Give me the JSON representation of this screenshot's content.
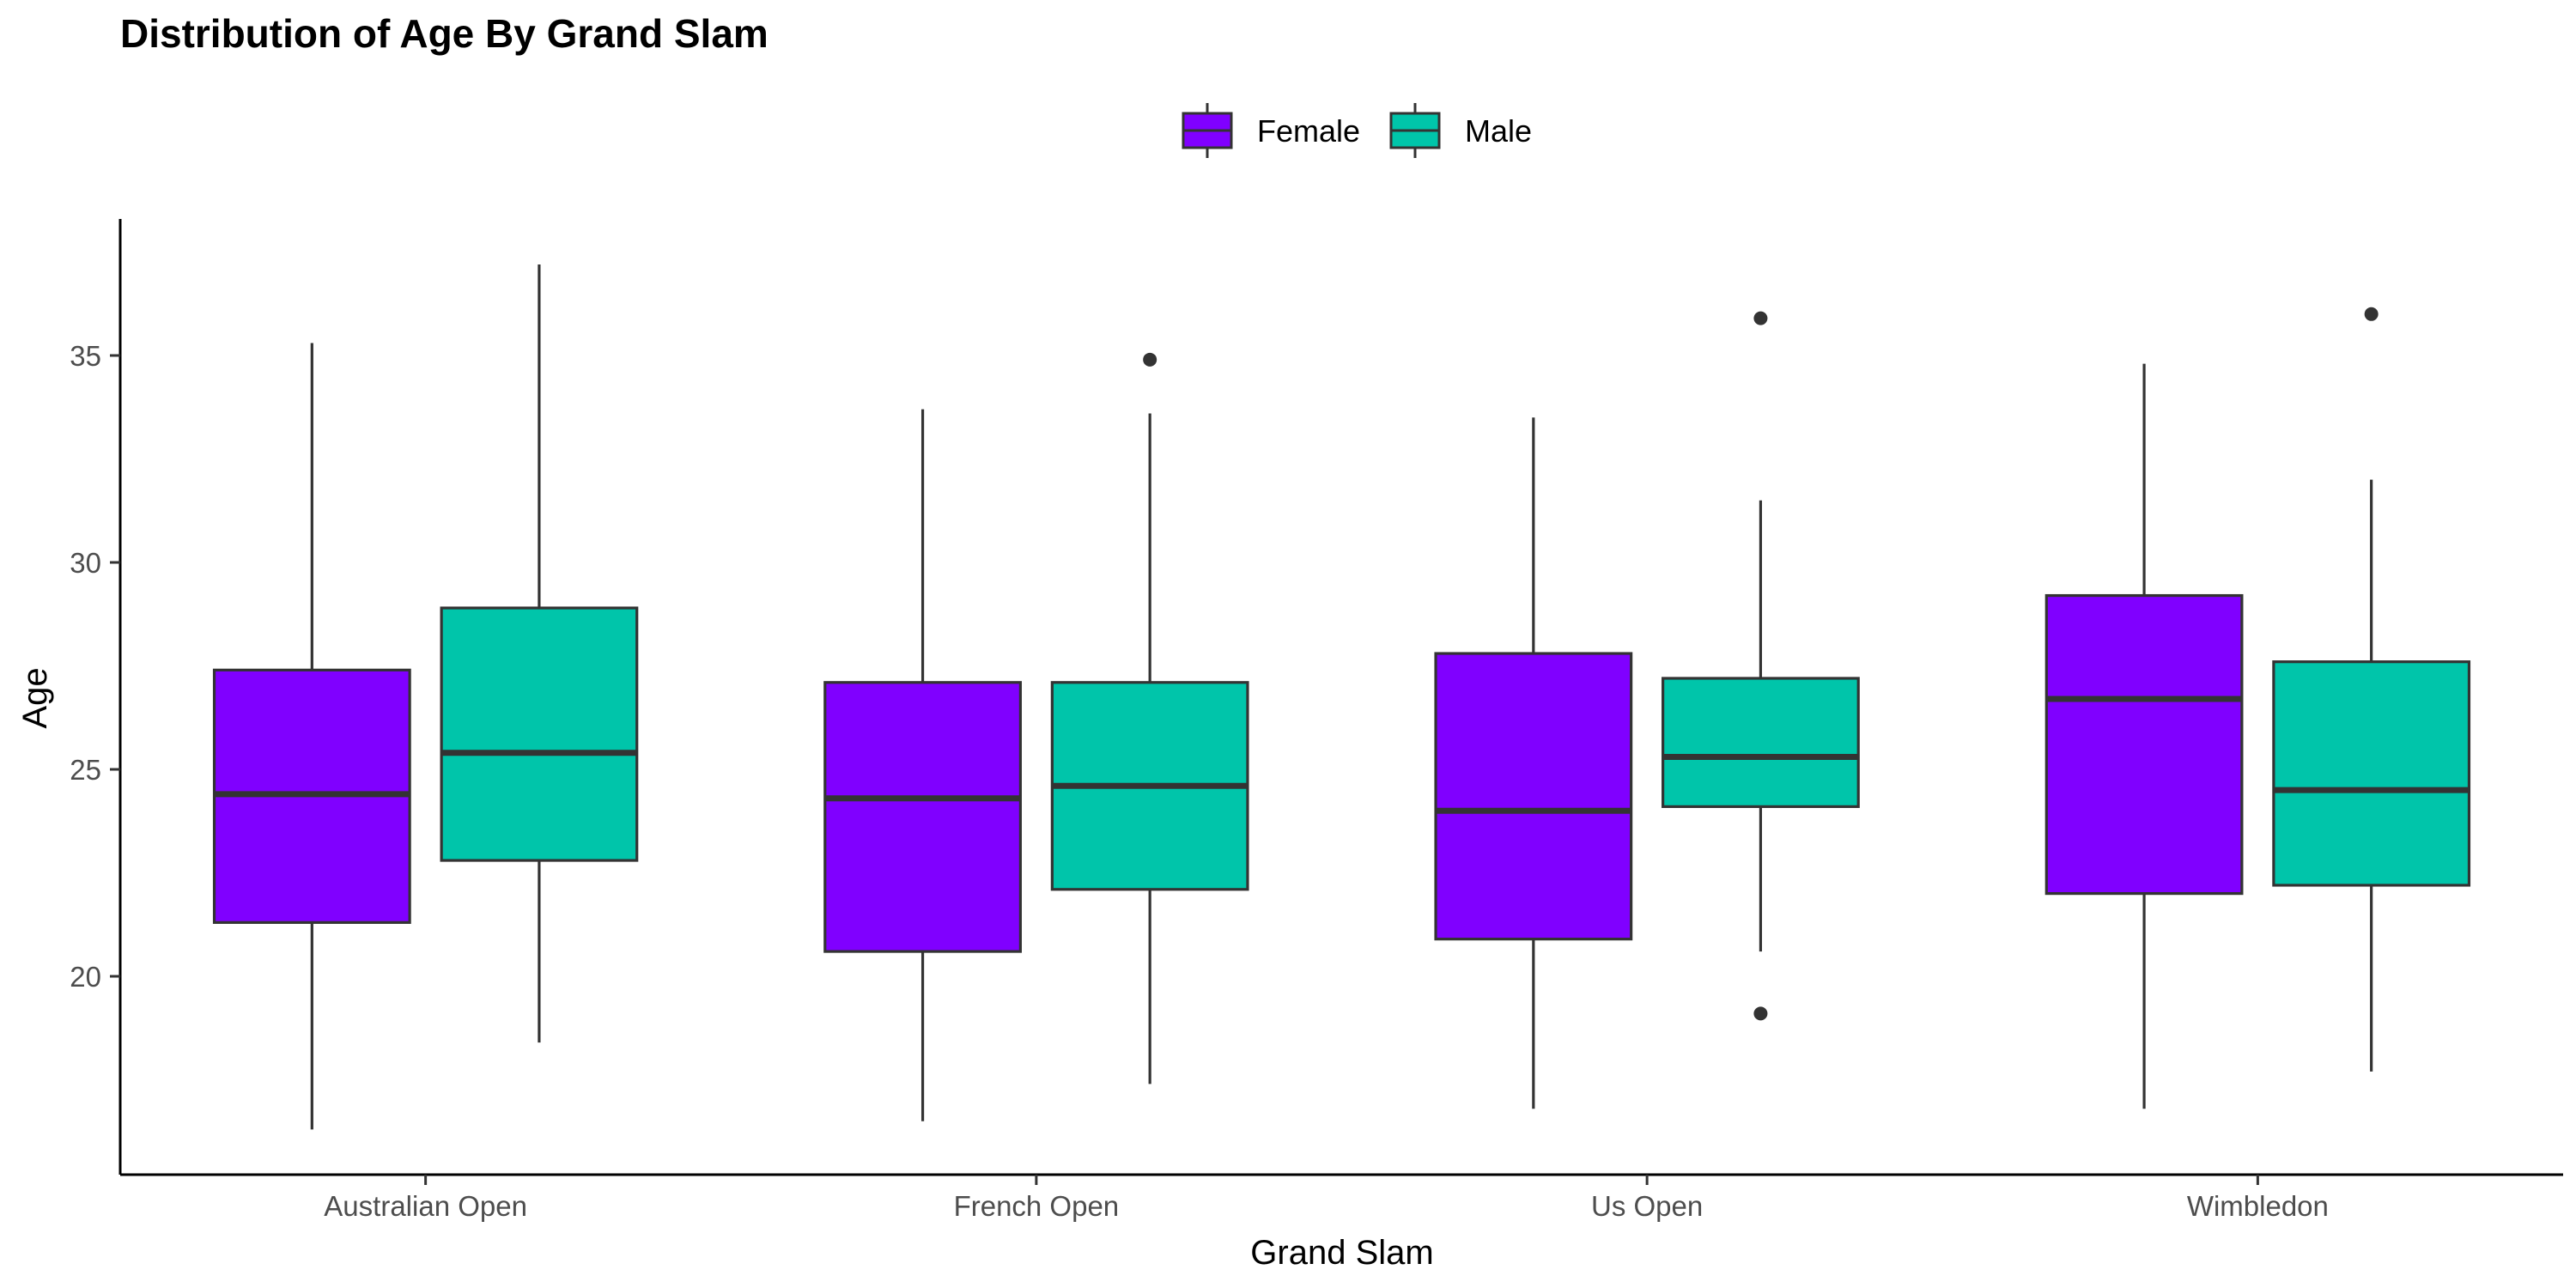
{
  "chart_data": {
    "type": "boxplot",
    "title": "Distribution of Age By Grand Slam",
    "xlabel": "Grand Slam",
    "ylabel": "Age",
    "categories": [
      "Australian Open",
      "French Open",
      "Us Open",
      "Wimbledon"
    ],
    "y_ticks": [
      20,
      25,
      30,
      35
    ],
    "ylim": [
      15.3,
      38.3
    ],
    "grid": false,
    "legend_position": "top",
    "series": [
      {
        "name": "Female",
        "color": "#8000FF",
        "boxes": [
          {
            "category": "Australian Open",
            "min": 16.3,
            "q1": 21.3,
            "median": 24.4,
            "q3": 27.4,
            "max": 35.3,
            "outliers": []
          },
          {
            "category": "French Open",
            "min": 16.5,
            "q1": 20.6,
            "median": 24.3,
            "q3": 27.1,
            "max": 33.7,
            "outliers": []
          },
          {
            "category": "Us Open",
            "min": 16.8,
            "q1": 20.9,
            "median": 24.0,
            "q3": 27.8,
            "max": 33.5,
            "outliers": []
          },
          {
            "category": "Wimbledon",
            "min": 16.8,
            "q1": 22.0,
            "median": 26.7,
            "q3": 29.2,
            "max": 34.8,
            "outliers": []
          }
        ]
      },
      {
        "name": "Male",
        "color": "#00C5AA",
        "boxes": [
          {
            "category": "Australian Open",
            "min": 18.4,
            "q1": 22.8,
            "median": 25.4,
            "q3": 28.9,
            "max": 37.2,
            "outliers": []
          },
          {
            "category": "French Open",
            "min": 17.4,
            "q1": 22.1,
            "median": 24.6,
            "q3": 27.1,
            "max": 33.6,
            "outliers": [
              34.9
            ]
          },
          {
            "category": "Us Open",
            "min": 20.6,
            "q1": 24.1,
            "median": 25.3,
            "q3": 27.2,
            "max": 31.5,
            "outliers": [
              35.9,
              19.1
            ]
          },
          {
            "category": "Wimbledon",
            "min": 17.7,
            "q1": 22.2,
            "median": 24.5,
            "q3": 27.6,
            "max": 32.0,
            "outliers": [
              36.0
            ]
          }
        ]
      }
    ]
  }
}
